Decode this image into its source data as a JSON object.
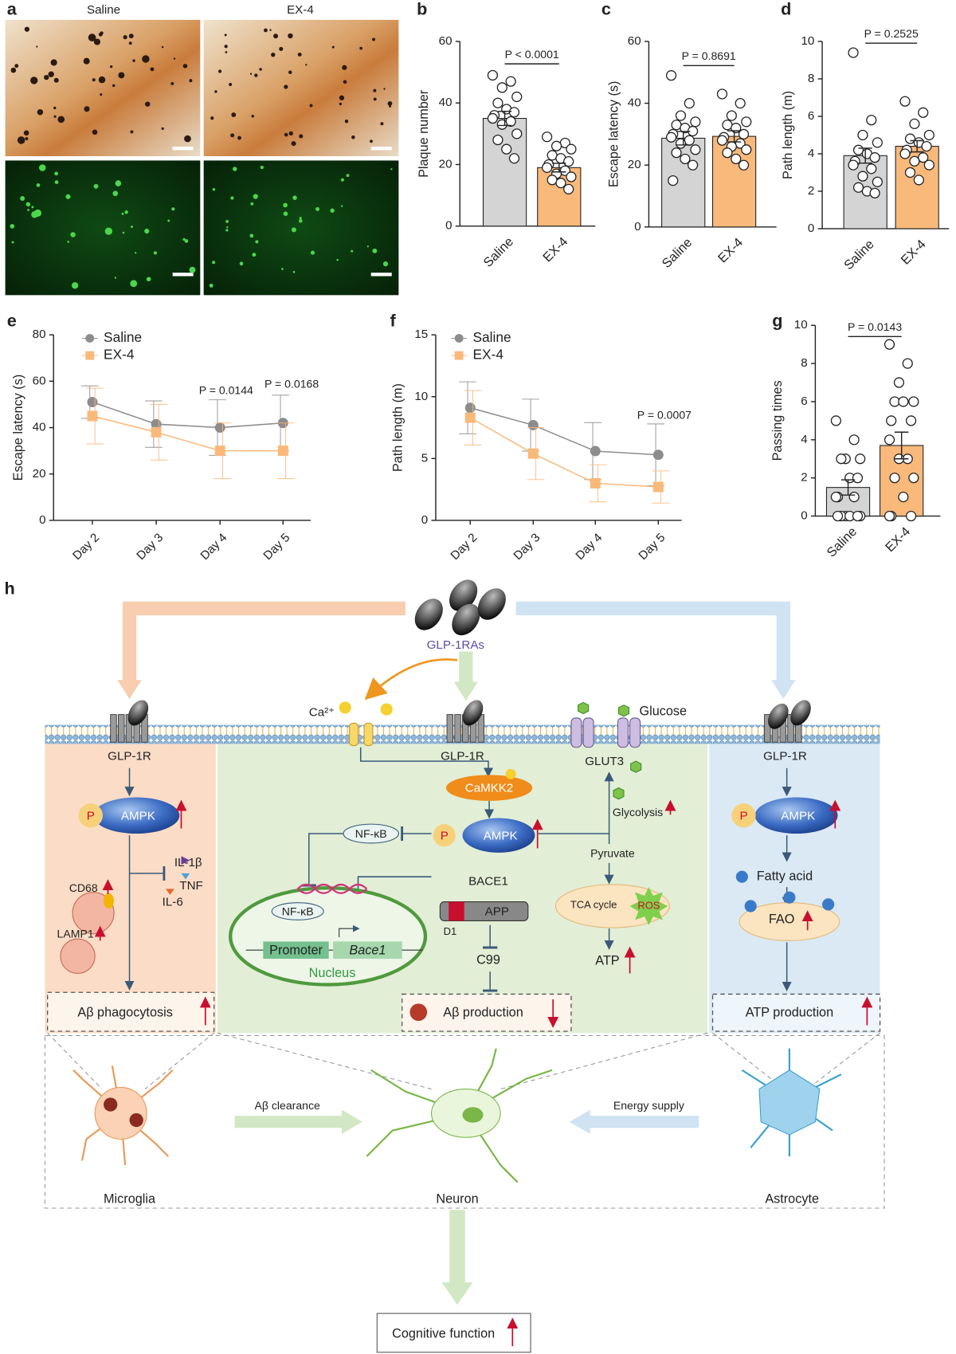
{
  "chart_data": [
    {
      "type": "bar",
      "panel": "b",
      "ylabel": "Plaque number",
      "categories": [
        "Saline",
        "EX-4"
      ],
      "colors": [
        "#d4d4d4",
        "#f9b97a"
      ],
      "values": [
        35,
        19
      ],
      "errors": [
        2.3,
        1.4
      ],
      "points": [
        [
          49,
          47,
          45,
          42,
          40,
          38,
          37,
          36,
          35,
          34,
          33,
          30,
          28,
          25,
          22
        ],
        [
          29,
          27,
          26,
          25,
          23,
          22,
          21,
          20,
          19,
          18,
          17,
          16,
          15,
          14,
          12
        ]
      ],
      "ylim": [
        0,
        60
      ],
      "yticks": [
        0,
        20,
        40,
        60
      ],
      "annotation": "P < 0.0001"
    },
    {
      "type": "bar",
      "panel": "c",
      "ylabel": "Escape latency (s)",
      "categories": [
        "Saline",
        "EX-4"
      ],
      "colors": [
        "#d4d4d4",
        "#f9b97a"
      ],
      "values": [
        28.7,
        29.3
      ],
      "errors": [
        2.2,
        1.8
      ],
      "points": [
        [
          49,
          40,
          36,
          34,
          33,
          32,
          31,
          30,
          29,
          28,
          27,
          25,
          24,
          22,
          20,
          15
        ],
        [
          43,
          40,
          36,
          34,
          33,
          32,
          30,
          29,
          28,
          27,
          26,
          25,
          24,
          22,
          20
        ]
      ],
      "ylim": [
        0,
        60
      ],
      "yticks": [
        0,
        20,
        40,
        60
      ],
      "annotation": "P = 0.8691"
    },
    {
      "type": "bar",
      "panel": "d",
      "ylabel": "Path length (m)",
      "categories": [
        "Saline",
        "EX-4"
      ],
      "colors": [
        "#d4d4d4",
        "#f9b97a"
      ],
      "values": [
        3.9,
        4.4
      ],
      "errors": [
        0.4,
        0.3
      ],
      "points": [
        [
          9.4,
          5.8,
          5.0,
          4.6,
          4.2,
          4.0,
          3.8,
          3.6,
          3.4,
          3.2,
          2.8,
          2.5,
          2.2,
          2.0,
          1.9
        ],
        [
          6.8,
          6.2,
          5.6,
          5.0,
          4.8,
          4.6,
          4.4,
          4.2,
          4.0,
          3.8,
          3.6,
          3.4,
          3.0,
          2.6
        ]
      ],
      "ylim": [
        0,
        10
      ],
      "yticks": [
        0,
        2,
        4,
        6,
        8,
        10
      ],
      "annotation": "P = 0.2525"
    },
    {
      "type": "line",
      "panel": "e",
      "ylabel": "Escape latency (s)",
      "categories": [
        "Day 2",
        "Day 3",
        "Day 4",
        "Day 5"
      ],
      "series": [
        {
          "name": "Saline",
          "color": "#8c8c8c",
          "marker": "circle",
          "values": [
            51,
            41.5,
            40,
            42
          ],
          "errors": [
            7,
            10,
            12,
            12
          ]
        },
        {
          "name": "EX-4",
          "color": "#f9b97a",
          "marker": "square",
          "values": [
            45,
            38,
            30,
            30
          ],
          "errors": [
            12,
            12,
            12,
            12
          ]
        }
      ],
      "ylim": [
        0,
        80
      ],
      "yticks": [
        0,
        20,
        40,
        60,
        80
      ],
      "annotations": [
        "P = 0.0144",
        "P = 0.0168"
      ]
    },
    {
      "type": "line",
      "panel": "f",
      "ylabel": "Path length (m)",
      "categories": [
        "Day 2",
        "Day 3",
        "Day 4",
        "Day 5"
      ],
      "series": [
        {
          "name": "Saline",
          "color": "#8c8c8c",
          "marker": "circle",
          "values": [
            9.1,
            7.7,
            5.6,
            5.3
          ],
          "errors": [
            2.1,
            2.1,
            2.3,
            2.5
          ]
        },
        {
          "name": "EX-4",
          "color": "#f9b97a",
          "marker": "square",
          "values": [
            8.3,
            5.4,
            3.0,
            2.7
          ],
          "errors": [
            2.2,
            2.1,
            1.5,
            1.3
          ]
        }
      ],
      "ylim": [
        0,
        15
      ],
      "yticks": [
        0,
        5,
        10,
        15
      ],
      "annotations": [
        "P = 0.0007"
      ]
    },
    {
      "type": "bar",
      "panel": "g",
      "ylabel": "Passing times",
      "categories": [
        "Saline",
        "EX-4"
      ],
      "colors": [
        "#d4d4d4",
        "#f9b97a"
      ],
      "values": [
        1.5,
        3.7
      ],
      "errors": [
        0.4,
        0.7
      ],
      "points": [
        [
          5,
          4,
          3,
          3,
          3,
          2,
          2,
          1,
          1,
          1,
          0,
          0,
          0,
          0,
          0,
          0
        ],
        [
          9,
          8,
          7,
          6,
          6,
          6,
          5,
          5,
          4,
          3,
          3,
          2,
          2,
          1,
          0,
          0,
          0
        ]
      ],
      "ylim": [
        0,
        10
      ],
      "yticks": [
        0,
        2,
        4,
        6,
        8,
        10
      ],
      "annotation": "P = 0.0143"
    }
  ],
  "images": {
    "panel": "a",
    "columns": [
      "Saline",
      "EX-4"
    ]
  },
  "diagram": {
    "panel": "h",
    "ligand": "GLP-1RAs",
    "calcium": "Ca²⁺",
    "glucose": "Glucose",
    "microglia_panel": {
      "receptor": "GLP-1R",
      "phospho": "P",
      "kinase": "AMPK",
      "cytokines": [
        "IL-1β",
        "TNF",
        "IL-6"
      ],
      "markers": [
        "CD68",
        "LAMP1"
      ],
      "outcome": "Aβ phagocytosis"
    },
    "neuron_panel": {
      "receptor": "GLP-1R",
      "upstream": "CaMKK2",
      "phospho": "P",
      "kinase": "AMPK",
      "nfkb": "NF-κB",
      "nfkb_nucleus": "NF-κB",
      "promoter": "Promoter",
      "gene": "Bace1",
      "nucleus": "Nucleus",
      "bace1": "BACE1",
      "app": "APP",
      "domain": "D1",
      "c99": "C99",
      "outcome": "Aβ production",
      "transporter": "GLUT3",
      "glycolysis": "Glycolysis",
      "pyruvate": "Pyruvate",
      "tca": "TCA cycle",
      "ros": "ROS",
      "atp": "ATP"
    },
    "astrocyte_panel": {
      "receptor": "GLP-1R",
      "phospho": "P",
      "kinase": "AMPK",
      "fatty_acid": "Fatty acid",
      "fao": "FAO",
      "outcome": "ATP production"
    },
    "arrows": {
      "clearance": "Aβ clearance",
      "energy": "Energy supply"
    },
    "cells": {
      "microglia": "Microglia",
      "neuron": "Neuron",
      "astrocyte": "Astrocyte"
    },
    "result": "Cognitive function"
  }
}
